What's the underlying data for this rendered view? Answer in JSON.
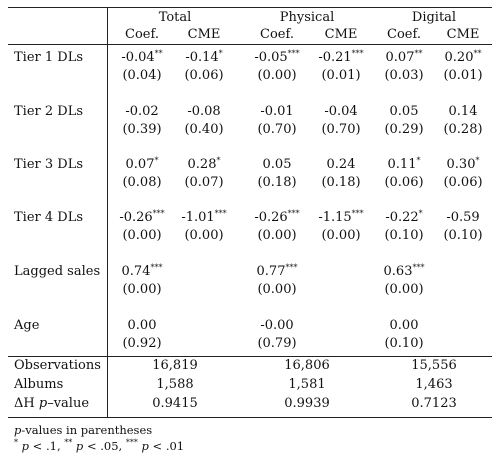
{
  "groups": [
    "Total",
    "Physical",
    "Digital"
  ],
  "subheaders": [
    "Coef.",
    "CME",
    "Coef.",
    "CME",
    "Coef.",
    "CME"
  ],
  "rows": [
    {
      "label": "Tier 1 DLs",
      "values": [
        {
          "v": "-0.04",
          "s": "**"
        },
        {
          "v": "-0.14",
          "s": "*"
        },
        {
          "v": "-0.05",
          "s": "***"
        },
        {
          "v": "-0.21",
          "s": "***"
        },
        {
          "v": "0.07",
          "s": "**"
        },
        {
          "v": "0.20",
          "s": "**"
        }
      ],
      "pvalues": [
        "(0.04)",
        "(0.06)",
        "(0.00)",
        "(0.01)",
        "(0.03)",
        "(0.01)"
      ]
    },
    {
      "label": "Tier 2 DLs",
      "values": [
        {
          "v": "-0.02",
          "s": ""
        },
        {
          "v": "-0.08",
          "s": ""
        },
        {
          "v": "-0.01",
          "s": ""
        },
        {
          "v": "-0.04",
          "s": ""
        },
        {
          "v": "0.05",
          "s": ""
        },
        {
          "v": "0.14",
          "s": ""
        }
      ],
      "pvalues": [
        "(0.39)",
        "(0.40)",
        "(0.70)",
        "(0.70)",
        "(0.29)",
        "(0.28)"
      ]
    },
    {
      "label": "Tier 3 DLs",
      "values": [
        {
          "v": "0.07",
          "s": "*"
        },
        {
          "v": "0.28",
          "s": "*"
        },
        {
          "v": "0.05",
          "s": ""
        },
        {
          "v": "0.24",
          "s": ""
        },
        {
          "v": "0.11",
          "s": "*"
        },
        {
          "v": "0.30",
          "s": "*"
        }
      ],
      "pvalues": [
        "(0.08)",
        "(0.07)",
        "(0.18)",
        "(0.18)",
        "(0.06)",
        "(0.06)"
      ]
    },
    {
      "label": "Tier 4 DLs",
      "values": [
        {
          "v": "-0.26",
          "s": "***"
        },
        {
          "v": "-1.01",
          "s": "***"
        },
        {
          "v": "-0.26",
          "s": "***"
        },
        {
          "v": "-1.15",
          "s": "***"
        },
        {
          "v": "-0.22",
          "s": "*"
        },
        {
          "v": "-0.59",
          "s": ""
        }
      ],
      "pvalues": [
        "(0.00)",
        "(0.00)",
        "(0.00)",
        "(0.00)",
        "(0.10)",
        "(0.10)"
      ]
    },
    {
      "label": "Lagged sales",
      "values": [
        {
          "v": "0.74",
          "s": "***"
        },
        null,
        {
          "v": "0.77",
          "s": "***"
        },
        null,
        {
          "v": "0.63",
          "s": "***"
        },
        null
      ],
      "pvalues": [
        "(0.00)",
        null,
        "(0.00)",
        null,
        "(0.00)",
        null
      ]
    },
    {
      "label": "Age",
      "values": [
        {
          "v": "0.00",
          "s": ""
        },
        null,
        {
          "v": "-0.00",
          "s": ""
        },
        null,
        {
          "v": "0.00",
          "s": ""
        },
        null
      ],
      "pvalues": [
        "(0.92)",
        null,
        "(0.79)",
        null,
        "(0.10)",
        null
      ]
    }
  ],
  "stats": [
    {
      "label": "Observations",
      "values": [
        "16,819",
        "16,806",
        "15,556"
      ]
    },
    {
      "label": "Albums",
      "values": [
        "1,588",
        "1,581",
        "1,463"
      ]
    },
    {
      "label_prefix": "ΔH ",
      "label_italic": "p",
      "label_suffix": "–value",
      "values": [
        "0.9415",
        "0.9939",
        "0.7123"
      ]
    }
  ],
  "footnote1": {
    "italic": "p",
    "rest": "-values in parentheses"
  },
  "footnote2": [
    {
      "stars": "*",
      "italic": "p",
      "rest": " < .1, "
    },
    {
      "stars": "**",
      "italic": "p",
      "rest": " < .05, "
    },
    {
      "stars": "***",
      "italic": "p",
      "rest": " < .01"
    }
  ]
}
